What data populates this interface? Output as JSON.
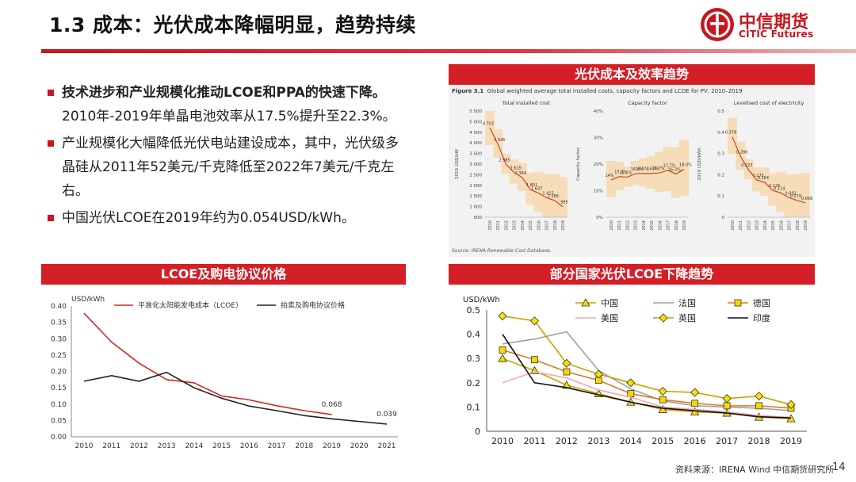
{
  "header": {
    "title": "1.3 成本：光伏成本降幅明显，趋势持续",
    "logo_cn": "中信期货",
    "logo_en": "CITIC Futures"
  },
  "bullets": [
    {
      "bold": "技术进步和产业规模化推动LCOE和PPA的快速下降。",
      "text": "2010年-2019年单晶电池效率从17.5%提升至22.3%。"
    },
    {
      "bold": "",
      "text": "产业规模化大幅降低光伏电站建设成本，其中，光伏级多晶硅从2011年52美元/千克降低至2022年7美元/千克左右。"
    },
    {
      "bold": "",
      "text": "中国光伏LCOE在2019年约为0.054USD/kWh。"
    }
  ],
  "panels": {
    "top_right_title": "光伏成本及效率趋势",
    "bottom_left_title": "LCOE及购电协议价格",
    "bottom_right_title": "部分国家光伏LCOE下降趋势"
  },
  "irena_figure": {
    "caption_label": "Figure 3.1",
    "caption_text": "Global weighted average total installed costs, capacity factors and LCOE for PV, 2010–2019",
    "source": "Source: IRENA Renewable Cost Database.",
    "years": [
      "2010",
      "2011",
      "2012",
      "2013",
      "2014",
      "2015",
      "2016",
      "2017",
      "2018",
      "2019"
    ],
    "subcharts": [
      {
        "title": "Total installed cost",
        "ylabel": "2019 USD/kW",
        "yticks": [
          "5 500",
          "5 000",
          "4 500",
          "4 000",
          "3 500",
          "3 000",
          "2 500",
          "2 000",
          "1 500",
          "1 000",
          "500"
        ],
        "ymin": 500,
        "ymax": 5500,
        "values": [
          4702,
          3936,
          2985,
          2615,
          2364,
          1801,
          1637,
          1415,
          1286,
          995
        ],
        "labels": [
          "4 702",
          "3 936",
          "2 985",
          "2 615",
          "2 364",
          "1 801",
          "1 637",
          "1 415",
          "1 286",
          "995"
        ]
      },
      {
        "title": "Capacity factor",
        "ylabel": "Capacity factor",
        "yticks": [
          "40%",
          "30%",
          "20%",
          "10%",
          "0%"
        ],
        "ymin": 0,
        "ymax": 40,
        "values": [
          14,
          15.3,
          15.1,
          16.4,
          16.5,
          16.5,
          16.7,
          17.7,
          16.3,
          18.0
        ],
        "labels": [
          "14%",
          "15.3%",
          "15.1%",
          "16.4%",
          "16.5%",
          "16.5%",
          "16.7%",
          "17.7%",
          "16.3%",
          "18.0%"
        ]
      },
      {
        "title": "Levelised cost of electricity",
        "ylabel": "2019 USD/kWh",
        "yticks": [
          "0.5",
          "0.4",
          "0.3",
          "0.2",
          "0.1",
          "0"
        ],
        "ymin": 0,
        "ymax": 0.5,
        "values": [
          0.378,
          0.286,
          0.223,
          0.175,
          0.164,
          0.126,
          0.114,
          0.092,
          0.079,
          0.068
        ],
        "labels": [
          "0.378",
          "0.286",
          "0.223",
          "0.175",
          "0.164",
          "0.126",
          "0.114",
          "0.092",
          "0.079",
          "0.068"
        ]
      }
    ]
  },
  "chart_data": [
    {
      "type": "line",
      "title": "LCOE及购电协议价格",
      "ylabel": "USD/kWh",
      "ylim": [
        0,
        0.4
      ],
      "yticks": [
        "0.00",
        "0.05",
        "0.10",
        "0.15",
        "0.20",
        "0.25",
        "0.30",
        "0.35",
        "0.40"
      ],
      "categories": [
        "2010",
        "2011",
        "2012",
        "2013",
        "2014",
        "2015",
        "2016",
        "2017",
        "2018",
        "2019",
        "2020",
        "2021"
      ],
      "series": [
        {
          "name": "平准化太阳能发电成本（LCOE）",
          "color": "#d22a25",
          "values": [
            0.378,
            0.29,
            0.225,
            0.175,
            0.165,
            0.125,
            0.113,
            0.095,
            0.08,
            0.068,
            null,
            null
          ]
        },
        {
          "name": "拍卖及购电协议价格",
          "color": "#222222",
          "values": [
            0.17,
            0.187,
            0.17,
            0.197,
            0.15,
            0.118,
            0.094,
            0.08,
            0.065,
            0.055,
            0.047,
            0.039
          ]
        }
      ],
      "annotations": [
        "0.068",
        "0.039"
      ]
    },
    {
      "type": "line",
      "title": "部分国家光伏LCOE下降趋势",
      "ylabel": "USD/kWh",
      "ylim": [
        0,
        0.5
      ],
      "yticks": [
        "0",
        "0.1",
        "0.2",
        "0.3",
        "0.4",
        "0.5"
      ],
      "categories": [
        "2010",
        "2011",
        "2012",
        "2013",
        "2014",
        "2015",
        "2016",
        "2017",
        "2018",
        "2019"
      ],
      "series": [
        {
          "name": "中国",
          "color": "#c9a100",
          "marker": "triangle",
          "values": [
            0.3,
            0.25,
            0.19,
            0.155,
            0.12,
            0.09,
            0.08,
            0.075,
            0.058,
            0.052
          ]
        },
        {
          "name": "法国",
          "color": "#a0a0a0",
          "marker": "none",
          "values": [
            0.36,
            0.38,
            0.41,
            0.25,
            0.175,
            0.125,
            0.105,
            0.1,
            0.095,
            0.085
          ]
        },
        {
          "name": "德国",
          "color": "#e07a1a",
          "marker": "square",
          "values": [
            0.335,
            0.295,
            0.245,
            0.21,
            0.155,
            0.13,
            0.115,
            0.105,
            0.105,
            0.095
          ]
        },
        {
          "name": "美国",
          "color": "#f0a8b0",
          "marker": "none",
          "values": [
            0.2,
            0.245,
            0.22,
            0.17,
            0.14,
            0.1,
            0.09,
            0.08,
            0.065,
            0.058
          ]
        },
        {
          "name": "英国",
          "color": "#c9a100",
          "marker": "diamond",
          "values": [
            0.475,
            0.455,
            0.28,
            0.235,
            0.2,
            0.165,
            0.16,
            0.135,
            0.145,
            0.11
          ]
        },
        {
          "name": "印度",
          "color": "#111111",
          "marker": "none",
          "values": [
            0.4,
            0.2,
            0.18,
            0.15,
            0.12,
            0.095,
            0.085,
            0.075,
            0.06,
            0.055
          ]
        }
      ]
    }
  ],
  "footer": {
    "source": "资料来源：IRENA Wind 中信期货研究所",
    "page": "14"
  }
}
